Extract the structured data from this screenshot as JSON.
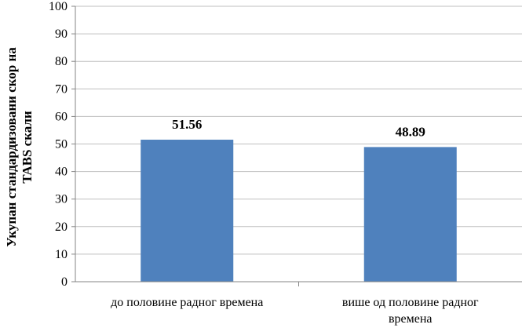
{
  "chart_data": {
    "type": "bar",
    "categories": [
      [
        "до половине радног времена"
      ],
      [
        "више од половине радног",
        "времена"
      ]
    ],
    "values": [
      51.56,
      48.89
    ],
    "value_labels": [
      "51.56",
      "48.89"
    ],
    "ylabel": [
      "Укупан стандардизовани скор на",
      "TABS скали"
    ],
    "ylim": [
      0,
      100
    ],
    "yticks": [
      0,
      10,
      20,
      30,
      40,
      50,
      60,
      70,
      80,
      90,
      100
    ],
    "grid": true,
    "legend": "none",
    "bar_color": "#4f81bd",
    "grid_color": "#bfbfbf",
    "axis_color": "#868686"
  }
}
